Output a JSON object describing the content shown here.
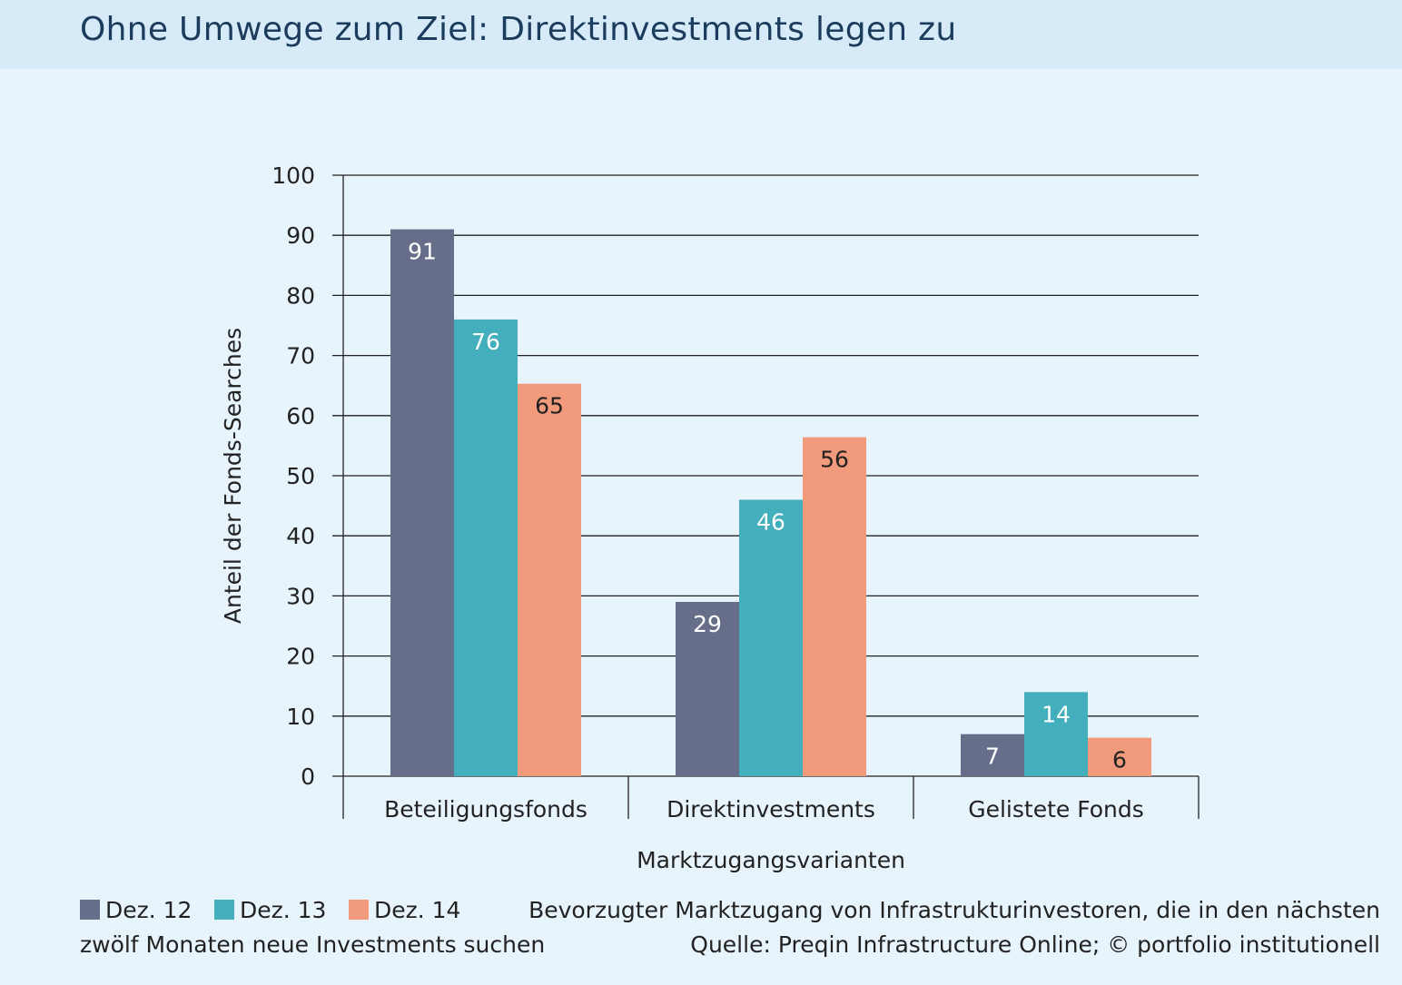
{
  "title": "Ohne Umwege zum Ziel: Direktinvestments legen zu",
  "colors": {
    "dez12": "#676e8a",
    "dez13": "#43afbd",
    "dez14": "#f29a7c",
    "background": "#e8f4fb",
    "title_bar": "#d6ebf7"
  },
  "chart_data": {
    "type": "bar",
    "categories": [
      "Beteiligungsfonds",
      "Direktinvestments",
      "Gelistete Fonds"
    ],
    "series": [
      {
        "name": "Dez. 12",
        "values": [
          91,
          29,
          7
        ],
        "labels": [
          "91",
          "29",
          "7"
        ],
        "color": "#676e8a"
      },
      {
        "name": "Dez. 13",
        "values": [
          76,
          46,
          14
        ],
        "labels": [
          "76",
          "46",
          "14"
        ],
        "color": "#43afbd"
      },
      {
        "name": "Dez. 14",
        "values": [
          65.3,
          56.4,
          6.4
        ],
        "labels": [
          "65",
          "56",
          "6"
        ],
        "color": "#f29a7c"
      }
    ],
    "xlabel": "Marktzugangsvarianten",
    "ylabel": "Anteil der Fonds-Searches",
    "ylim": [
      0,
      100
    ],
    "yticks": [
      "0",
      "10",
      "20",
      "30",
      "40",
      "50",
      "60",
      "70",
      "80",
      "90",
      "100"
    ],
    "grid": true,
    "legend_position": "bottom-left"
  },
  "legend": [
    {
      "label": "Dez. 12",
      "color": "#676e8a"
    },
    {
      "label": "Dez. 13",
      "color": "#43afbd"
    },
    {
      "label": "Dez. 14",
      "color": "#f29a7c"
    }
  ],
  "description_line1": "Bevorzugter Marktzugang von Infrastrukturinvestoren, die in den nächsten",
  "description_line2": "zwölf Monaten neue Investments suchen",
  "source": "Quelle: Preqin Infrastructure Online; © portfolio institutionell"
}
